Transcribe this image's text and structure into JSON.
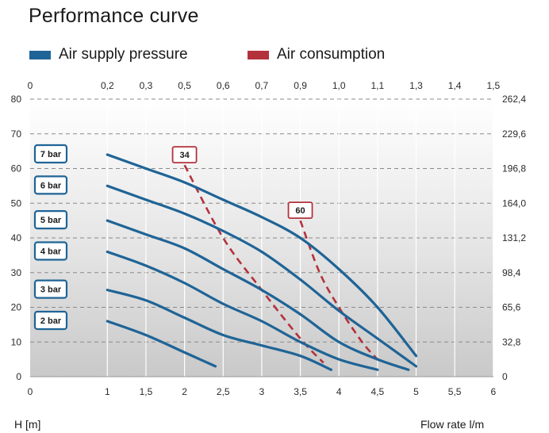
{
  "title": "Performance curve",
  "legend": [
    {
      "label": "Air supply pressure",
      "color": "#1f6496"
    },
    {
      "label": "Air consumption",
      "color": "#b3323c"
    }
  ],
  "xlabel": "Flow rate l/m",
  "ylabel": "H [m]",
  "chart_data": {
    "type": "line",
    "x_range": [
      0,
      6.5
    ],
    "y_range": [
      0,
      80
    ],
    "x_ticks": [
      "0",
      "1",
      "1,5",
      "2",
      "2,5",
      "3",
      "3,5",
      "4",
      "4,5",
      "5",
      "5,5",
      "6"
    ],
    "x_tick_values": [
      0,
      1,
      1.5,
      2,
      2.5,
      3,
      3.5,
      4,
      4.5,
      5,
      5.5,
      6
    ],
    "x2_ticks": [
      "0",
      "0,2",
      "0,3",
      "0,5",
      "0,6",
      "0,7",
      "0,9",
      "1,0",
      "1,1",
      "1,3",
      "1,4",
      "1,5"
    ],
    "y_ticks": [
      0,
      10,
      20,
      30,
      40,
      50,
      60,
      70,
      80
    ],
    "y2_ticks": [
      "0",
      "32,8",
      "65,6",
      "98,4",
      "131,2",
      "164,0",
      "196,8",
      "229,6",
      "262,4"
    ],
    "grid": true,
    "series": [
      {
        "name": "7 bar",
        "color": "#1f6496",
        "points": [
          [
            1,
            64
          ],
          [
            1.5,
            60
          ],
          [
            2,
            56
          ],
          [
            2.5,
            51
          ],
          [
            3,
            46
          ],
          [
            3.5,
            40
          ],
          [
            4,
            31
          ],
          [
            4.5,
            20
          ],
          [
            5,
            6
          ]
        ]
      },
      {
        "name": "6 bar",
        "color": "#1f6496",
        "points": [
          [
            1,
            55
          ],
          [
            1.5,
            51
          ],
          [
            2,
            47
          ],
          [
            2.5,
            42
          ],
          [
            3,
            36
          ],
          [
            3.5,
            28
          ],
          [
            4,
            19
          ],
          [
            4.5,
            11
          ],
          [
            5,
            3
          ]
        ]
      },
      {
        "name": "5 bar",
        "color": "#1f6496",
        "points": [
          [
            1,
            45
          ],
          [
            1.5,
            41
          ],
          [
            2,
            37
          ],
          [
            2.5,
            31
          ],
          [
            3,
            25
          ],
          [
            3.5,
            18
          ],
          [
            4,
            10
          ],
          [
            4.5,
            5
          ],
          [
            4.9,
            2
          ]
        ]
      },
      {
        "name": "4 bar",
        "color": "#1f6496",
        "points": [
          [
            1,
            36
          ],
          [
            1.5,
            32
          ],
          [
            2,
            27
          ],
          [
            2.5,
            21
          ],
          [
            3,
            16
          ],
          [
            3.5,
            10
          ],
          [
            4,
            5
          ],
          [
            4.5,
            2
          ]
        ]
      },
      {
        "name": "3 bar",
        "color": "#1f6496",
        "points": [
          [
            1,
            25
          ],
          [
            1.5,
            22
          ],
          [
            2,
            17
          ],
          [
            2.5,
            12
          ],
          [
            3,
            9
          ],
          [
            3.5,
            6
          ],
          [
            3.9,
            2
          ]
        ]
      },
      {
        "name": "2 bar",
        "color": "#1f6496",
        "points": [
          [
            1,
            16
          ],
          [
            1.5,
            12
          ],
          [
            2,
            7
          ],
          [
            2.4,
            3
          ]
        ]
      }
    ],
    "consumption": [
      {
        "label": "34",
        "color": "#b3323c",
        "points": [
          [
            2,
            61
          ],
          [
            2.5,
            40
          ],
          [
            3,
            25
          ],
          [
            3.5,
            11
          ],
          [
            3.8,
            4
          ]
        ]
      },
      {
        "label": "60",
        "color": "#b3323c",
        "points": [
          [
            3.5,
            45
          ],
          [
            3.75,
            30
          ],
          [
            4,
            20
          ],
          [
            4.3,
            10
          ],
          [
            4.5,
            5
          ]
        ]
      }
    ]
  }
}
